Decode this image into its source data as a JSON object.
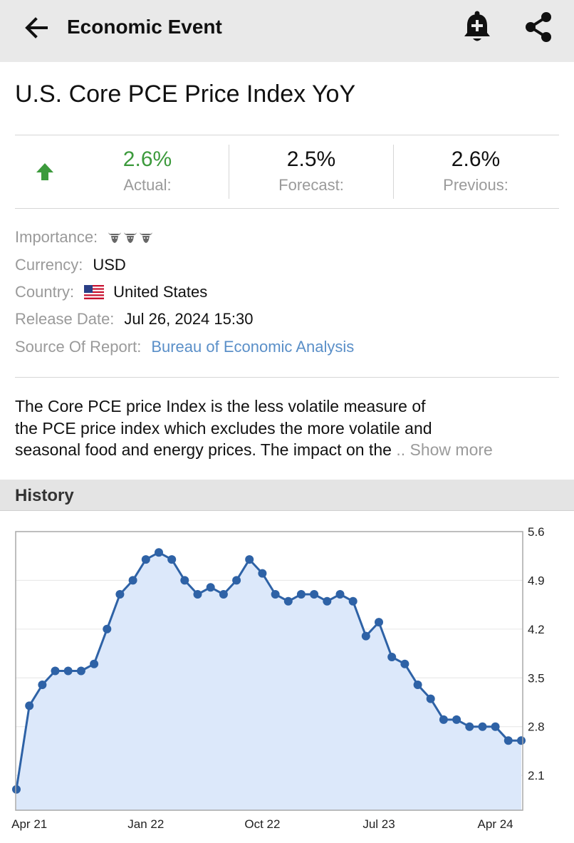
{
  "header": {
    "title": "Economic Event",
    "icons": {
      "back": "back-arrow-icon",
      "alert": "add-alert-bell-icon",
      "share": "share-icon"
    }
  },
  "event": {
    "title": "U.S. Core PCE Price Index YoY",
    "trend_icon": "up-arrow-icon",
    "trend_color": "#3c9a3c",
    "actual": {
      "value": "2.6%",
      "label": "Actual:",
      "color": "#3c9a3c"
    },
    "forecast": {
      "value": "2.5%",
      "label": "Forecast:"
    },
    "previous": {
      "value": "2.6%",
      "label": "Previous:"
    }
  },
  "info": {
    "importance_label": "Importance:",
    "importance_icon": "bull-icon",
    "importance_level": 3,
    "currency_label": "Currency:",
    "currency_value": "USD",
    "country_label": "Country:",
    "country_flag_icon": "us-flag-icon",
    "country_value": "United States",
    "release_label": "Release Date:",
    "release_value": "Jul 26, 2024 15:30",
    "source_label": "Source Of Report:",
    "source_value": "Bureau of Economic Analysis",
    "link_color": "#5a8fc8"
  },
  "description": {
    "line1": "The Core PCE price Index is the less volatile measure of",
    "line2": "the PCE price index which excludes the more volatile and",
    "line3": "seasonal food and energy prices. The impact on the",
    "show_more": ".. Show more"
  },
  "history": {
    "title": "History"
  },
  "chart_data": {
    "type": "area",
    "title": "",
    "xlabel": "",
    "ylabel": "",
    "ylim": [
      1.6,
      5.6
    ],
    "y_ticks": [
      "5.6",
      "4.9",
      "4.2",
      "3.5",
      "2.8",
      "2.1"
    ],
    "x_tick_labels": [
      "Apr 21",
      "Jan 22",
      "Oct 22",
      "Jul 23",
      "Apr 24"
    ],
    "x": [
      "Mar 21",
      "Apr 21",
      "May 21",
      "Jun 21",
      "Jul 21",
      "Aug 21",
      "Sep 21",
      "Oct 21",
      "Nov 21",
      "Dec 21",
      "Jan 22",
      "Feb 22",
      "Mar 22",
      "Apr 22",
      "May 22",
      "Jun 22",
      "Jul 22",
      "Aug 22",
      "Sep 22",
      "Oct 22",
      "Nov 22",
      "Dec 22",
      "Jan 23",
      "Feb 23",
      "Mar 23",
      "Apr 23",
      "May 23",
      "Jun 23",
      "Jul 23",
      "Aug 23",
      "Sep 23",
      "Oct 23",
      "Nov 23",
      "Dec 23",
      "Jan 24",
      "Feb 24",
      "Mar 24",
      "Apr 24",
      "May 24",
      "Jun 24"
    ],
    "series": [
      {
        "values": [
          1.9,
          3.1,
          3.4,
          3.6,
          3.6,
          3.6,
          3.7,
          4.2,
          4.7,
          4.9,
          5.2,
          5.3,
          5.2,
          4.9,
          4.7,
          4.8,
          4.7,
          4.9,
          5.2,
          5.0,
          4.7,
          4.6,
          4.7,
          4.7,
          4.6,
          4.7,
          4.6,
          4.1,
          4.3,
          3.8,
          3.7,
          3.4,
          3.2,
          2.9,
          2.9,
          2.8,
          2.8,
          2.8,
          2.6,
          2.6
        ]
      }
    ],
    "line_color": "#2e62a6",
    "fill_color": "#dce8fa",
    "grid": true
  }
}
